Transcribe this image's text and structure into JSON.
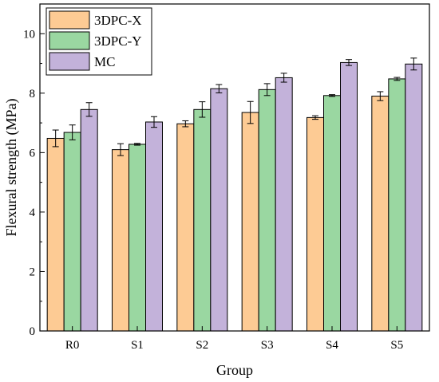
{
  "chart_data": {
    "type": "bar",
    "xlabel": "Group",
    "ylabel": "Flexural strength (MPa)",
    "ylim": [
      0,
      11
    ],
    "yticks": [
      0,
      2,
      4,
      6,
      8,
      10
    ],
    "categories": [
      "R0",
      "S1",
      "S2",
      "S3",
      "S4",
      "S5"
    ],
    "legend_position": "top-left",
    "grid": false,
    "series": [
      {
        "name": "3DPC-X",
        "color": "#FDCB94",
        "values": [
          6.48,
          6.1,
          6.97,
          7.35,
          7.18,
          7.9
        ],
        "errors": [
          0.28,
          0.2,
          0.1,
          0.37,
          0.06,
          0.15
        ]
      },
      {
        "name": "3DPC-Y",
        "color": "#9AD7A1",
        "values": [
          6.68,
          6.28,
          7.45,
          8.12,
          7.92,
          8.48
        ],
        "errors": [
          0.25,
          0.03,
          0.26,
          0.2,
          0.03,
          0.05
        ]
      },
      {
        "name": "MC",
        "color": "#C3B2DA",
        "values": [
          7.45,
          7.03,
          8.15,
          8.52,
          9.03,
          8.98
        ],
        "errors": [
          0.23,
          0.18,
          0.14,
          0.15,
          0.1,
          0.2
        ]
      }
    ]
  }
}
